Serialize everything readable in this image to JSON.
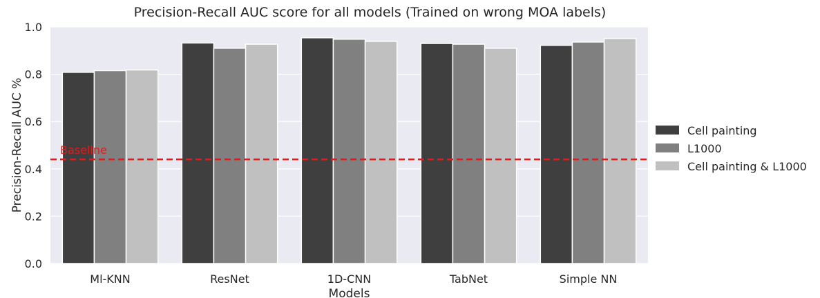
{
  "chart_data": {
    "type": "bar",
    "title": "Precision-Recall AUC score for all models (Trained on wrong MOA labels)",
    "xlabel": "Models",
    "ylabel": "Precision-Recall AUC %",
    "ylim": [
      0,
      1.0
    ],
    "yticks": [
      "0.0",
      "0.2",
      "0.4",
      "0.6",
      "0.8",
      "1.0"
    ],
    "categories": [
      "Ml-KNN",
      "ResNet",
      "1D-CNN",
      "TabNet",
      "Simple NN"
    ],
    "series": [
      {
        "name": "Cell painting",
        "color": "#3f3f3f",
        "values": [
          0.808,
          0.932,
          0.954,
          0.93,
          0.922
        ]
      },
      {
        "name": "L1000",
        "color": "#808080",
        "values": [
          0.815,
          0.91,
          0.948,
          0.927,
          0.936
        ]
      },
      {
        "name": "Cell painting & L1000",
        "color": "#c0c0c0",
        "values": [
          0.818,
          0.927,
          0.939,
          0.91,
          0.951
        ]
      }
    ],
    "baseline": {
      "label": "Baseline",
      "value": 0.44,
      "color": "#e31a1c"
    },
    "grid": true,
    "legend_position": "right"
  }
}
